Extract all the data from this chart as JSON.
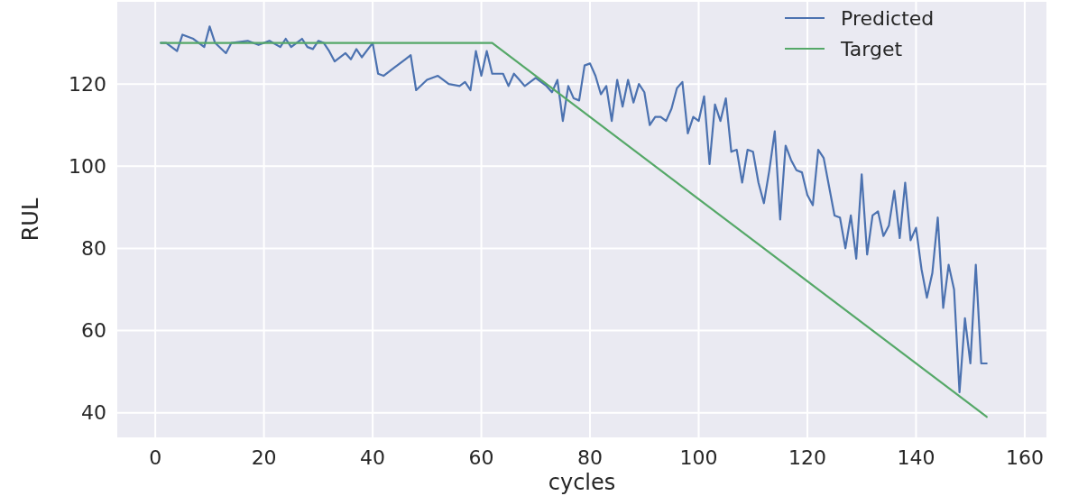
{
  "chart_data": {
    "type": "line",
    "xlabel": "cycles",
    "ylabel": "RUL",
    "xlim": [
      -7,
      164
    ],
    "ylim": [
      34,
      140
    ],
    "xticks": [
      0,
      20,
      40,
      60,
      80,
      100,
      120,
      140,
      160
    ],
    "yticks": [
      40,
      60,
      80,
      100,
      120
    ],
    "grid": true,
    "legend": "top right",
    "series": [
      {
        "name": "Predicted",
        "color": "#4c72b0",
        "x": [
          1,
          2,
          4,
          5,
          7,
          9,
          10,
          11,
          13,
          14,
          17,
          19,
          21,
          23,
          24,
          25,
          27,
          28,
          29,
          30,
          31,
          32,
          33,
          35,
          36,
          37,
          38,
          40,
          41,
          42,
          44,
          46,
          47,
          48,
          50,
          52,
          54,
          56,
          57,
          58,
          59,
          60,
          61,
          62,
          64,
          65,
          66,
          67,
          68,
          70,
          72,
          73,
          74,
          75,
          76,
          77,
          78,
          79,
          80,
          81,
          82,
          83,
          84,
          85,
          86,
          87,
          88,
          89,
          90,
          91,
          92,
          93,
          94,
          95,
          96,
          97,
          98,
          99,
          100,
          101,
          102,
          103,
          104,
          105,
          106,
          107,
          108,
          109,
          110,
          111,
          112,
          113,
          114,
          115,
          116,
          117,
          118,
          119,
          120,
          121,
          122,
          123,
          124,
          125,
          126,
          127,
          128,
          129,
          130,
          131,
          132,
          133,
          134,
          135,
          136,
          137,
          138,
          139,
          140,
          141,
          142,
          143,
          144,
          145,
          146,
          147,
          148,
          149,
          150,
          151,
          152,
          153
        ],
        "values": [
          130,
          130,
          128,
          132,
          131,
          129,
          134,
          130,
          127.5,
          130,
          130.5,
          129.5,
          130.5,
          129,
          131,
          129,
          131,
          129,
          128.5,
          130.5,
          130,
          128,
          125.5,
          127.5,
          126,
          128.5,
          126.5,
          130,
          122.5,
          122,
          124,
          126,
          127,
          118.5,
          121,
          122,
          120,
          119.5,
          120.5,
          118.5,
          128,
          122,
          128,
          122.5,
          122.5,
          119.5,
          122.5,
          121,
          119.5,
          121.5,
          119.5,
          118,
          121,
          111,
          119.5,
          116.5,
          116,
          124.5,
          125,
          122,
          117.5,
          119.5,
          111,
          121,
          114.5,
          121,
          115.5,
          120,
          118,
          110,
          112,
          112,
          111,
          114,
          119,
          120.5,
          108,
          112,
          111,
          117,
          100.5,
          115,
          111,
          116.5,
          103.5,
          104,
          96,
          104,
          103.5,
          96,
          91,
          99,
          108.5,
          87,
          105,
          101.5,
          99,
          98.5,
          93,
          90.5,
          104,
          102,
          95,
          88,
          87.5,
          80,
          88,
          77.5,
          98,
          78.5,
          88,
          89,
          83,
          85.5,
          94,
          82.5,
          96,
          82,
          85,
          75,
          68,
          74,
          87.5,
          65.5,
          76,
          70,
          45,
          63,
          52,
          76,
          52,
          52
        ]
      },
      {
        "name": "Target",
        "color": "#55a868",
        "x": [
          1,
          62,
          153
        ],
        "values": [
          130,
          130,
          39
        ]
      }
    ]
  }
}
